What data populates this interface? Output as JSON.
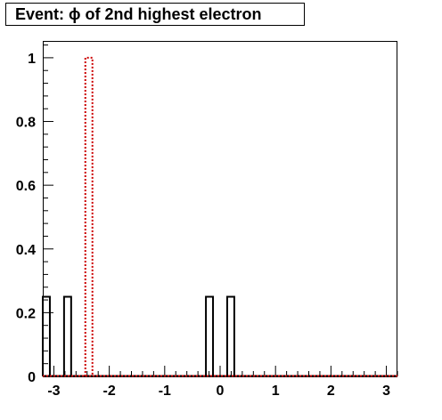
{
  "chart_data": {
    "type": "bar",
    "title": "Event: ϕ of 2nd highest electron",
    "xlabel": "",
    "ylabel": "",
    "xlim": [
      -3.2,
      3.2
    ],
    "ylim": [
      0,
      1.05
    ],
    "grid": false,
    "legend": "none",
    "x_ticks": [
      {
        "v": -3,
        "label": "-3"
      },
      {
        "v": -2,
        "label": "-2"
      },
      {
        "v": -1,
        "label": "-1"
      },
      {
        "v": 0,
        "label": "0"
      },
      {
        "v": 1,
        "label": "1"
      },
      {
        "v": 2,
        "label": "2"
      },
      {
        "v": 3,
        "label": "3"
      }
    ],
    "y_ticks": [
      {
        "v": 0,
        "label": "0"
      },
      {
        "v": 0.2,
        "label": "0.2"
      },
      {
        "v": 0.4,
        "label": "0.4"
      },
      {
        "v": 0.6,
        "label": "0.6"
      },
      {
        "v": 0.8,
        "label": "0.8"
      },
      {
        "v": 1,
        "label": "1"
      }
    ],
    "series": [
      {
        "style": "solid",
        "color": "#000000",
        "bins": [
          {
            "low": -3.2,
            "high": -3.072,
            "value": 0.25
          },
          {
            "low": -2.816,
            "high": -2.688,
            "value": 0.25
          },
          {
            "low": -0.256,
            "high": -0.128,
            "value": 0.25
          },
          {
            "low": 0.128,
            "high": 0.256,
            "value": 0.25
          }
        ]
      },
      {
        "style": "dotted",
        "color": "#cc0000",
        "bins": [
          {
            "low": -2.432,
            "high": -2.304,
            "value": 1.0
          }
        ]
      }
    ]
  }
}
